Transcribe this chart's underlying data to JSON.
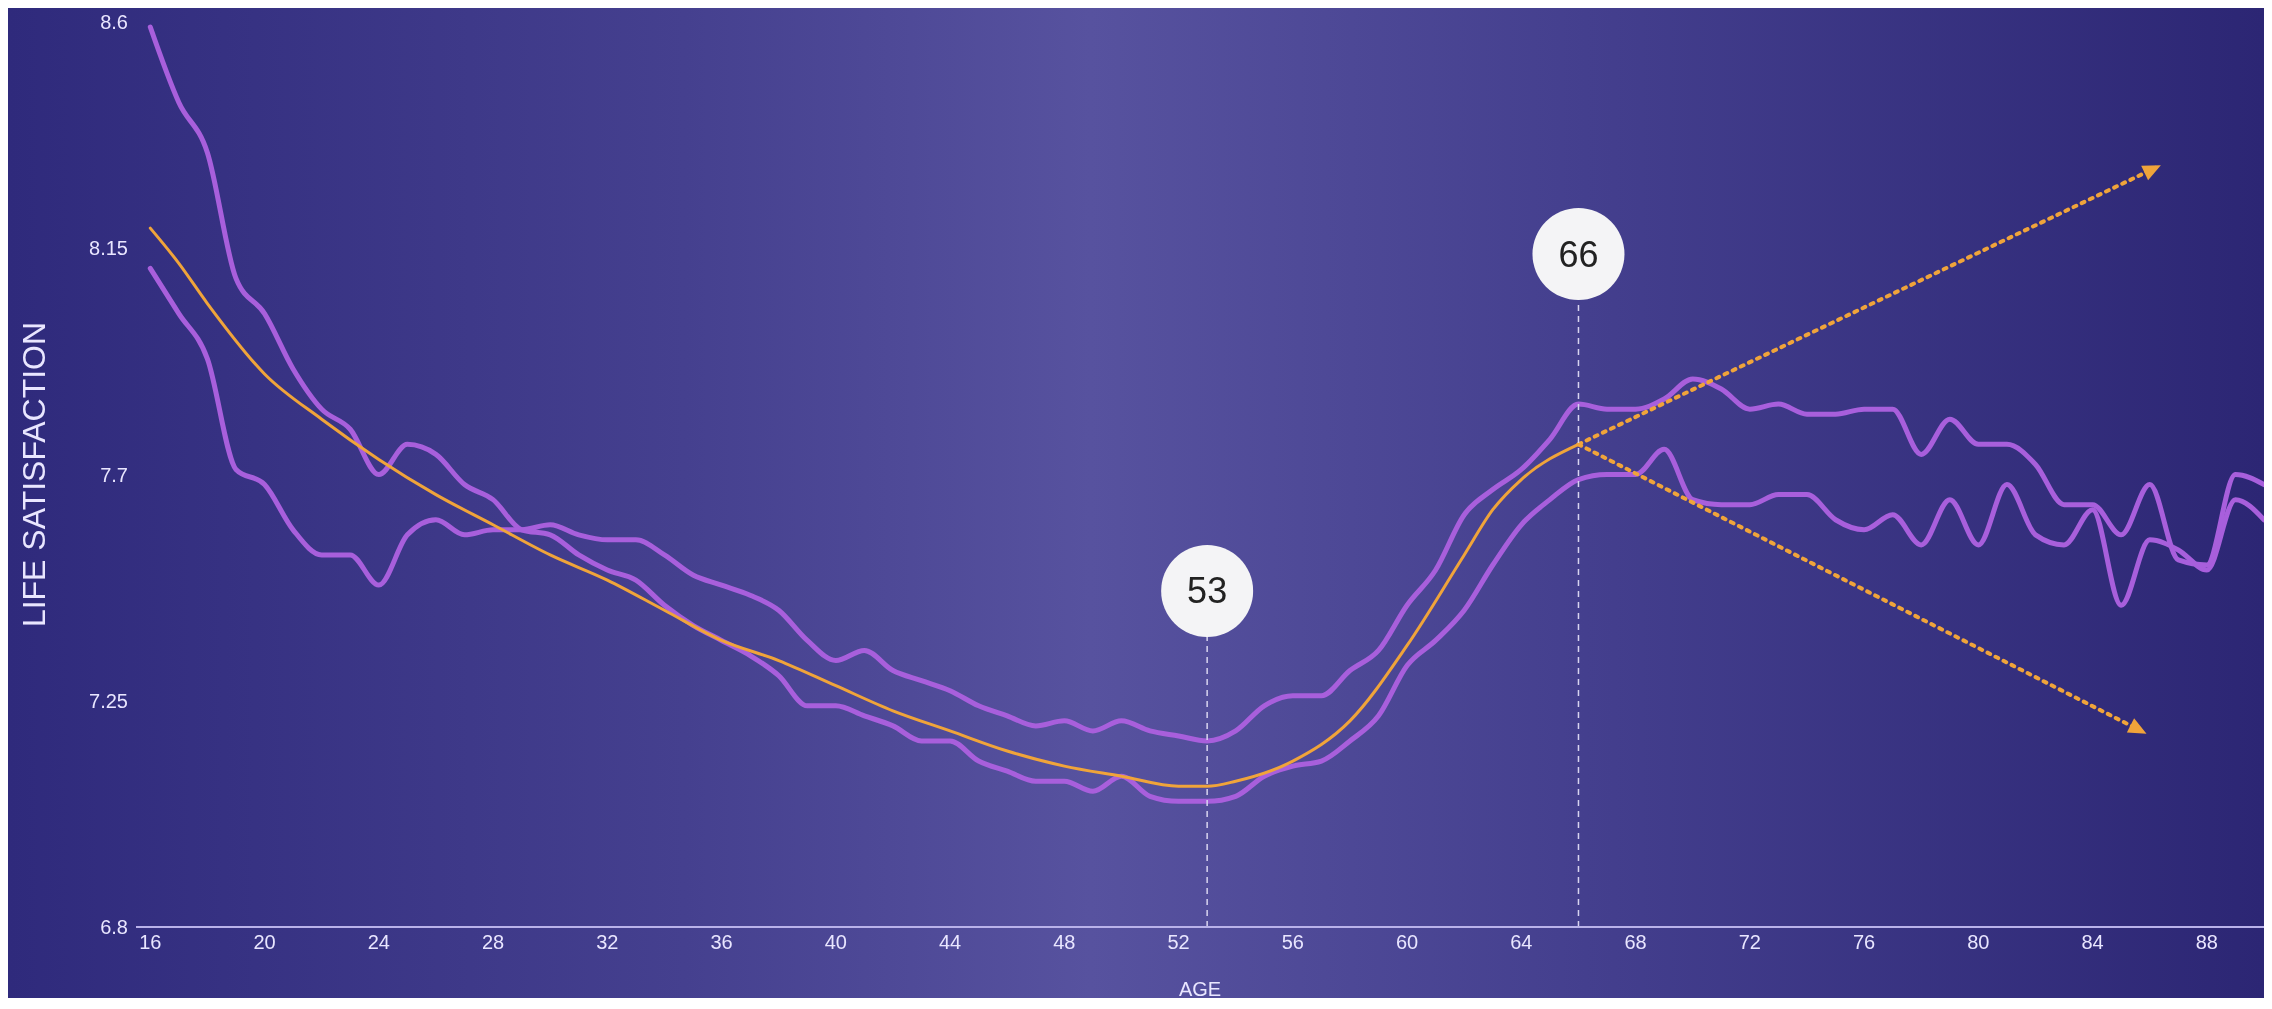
{
  "chart_data": {
    "type": "line",
    "xlabel": "AGE",
    "ylabel": "LIFE SATISFACTION",
    "x": [
      16,
      17,
      18,
      19,
      20,
      21,
      22,
      23,
      24,
      25,
      26,
      27,
      28,
      29,
      30,
      31,
      32,
      33,
      34,
      35,
      36,
      37,
      38,
      39,
      40,
      41,
      42,
      43,
      44,
      45,
      46,
      47,
      48,
      49,
      50,
      51,
      52,
      53,
      54,
      55,
      56,
      57,
      58,
      59,
      60,
      61,
      62,
      63,
      64,
      65,
      66,
      67,
      68,
      69,
      70,
      71,
      72,
      73,
      74,
      75,
      76,
      77,
      78,
      79,
      80,
      81,
      82,
      83,
      84,
      85,
      86,
      87,
      88,
      89,
      90
    ],
    "series": [
      {
        "color": "#a85fdc",
        "values": [
          8.59,
          8.44,
          8.34,
          8.09,
          8.02,
          7.91,
          7.83,
          7.79,
          7.7,
          7.76,
          7.74,
          7.68,
          7.65,
          7.59,
          7.58,
          7.54,
          7.51,
          7.49,
          7.44,
          7.4,
          7.37,
          7.34,
          7.3,
          7.24,
          7.24,
          7.22,
          7.2,
          7.17,
          7.17,
          7.13,
          7.11,
          7.09,
          7.09,
          7.07,
          7.1,
          7.06,
          7.05,
          7.05,
          7.06,
          7.1,
          7.12,
          7.13,
          7.17,
          7.22,
          7.32,
          7.37,
          7.43,
          7.52,
          7.6,
          7.65,
          7.69,
          7.7,
          7.7,
          7.75,
          7.65,
          7.64,
          7.64,
          7.66,
          7.66,
          7.61,
          7.59,
          7.62,
          7.56,
          7.65,
          7.56,
          7.68,
          7.58,
          7.56,
          7.63,
          7.44,
          7.57,
          7.55,
          7.51,
          7.65,
          7.61
        ]
      },
      {
        "color": "#a85fdc",
        "values": [
          8.11,
          8.02,
          7.93,
          7.71,
          7.68,
          7.59,
          7.54,
          7.54,
          7.48,
          7.58,
          7.61,
          7.58,
          7.59,
          7.59,
          7.6,
          7.58,
          7.57,
          7.57,
          7.54,
          7.5,
          7.48,
          7.46,
          7.43,
          7.37,
          7.33,
          7.35,
          7.31,
          7.29,
          7.27,
          7.24,
          7.22,
          7.2,
          7.21,
          7.19,
          7.21,
          7.19,
          7.18,
          7.17,
          7.19,
          7.24,
          7.26,
          7.26,
          7.31,
          7.35,
          7.44,
          7.51,
          7.62,
          7.67,
          7.71,
          7.77,
          7.84,
          7.83,
          7.83,
          7.85,
          7.89,
          7.87,
          7.83,
          7.84,
          7.82,
          7.82,
          7.83,
          7.83,
          7.74,
          7.81,
          7.76,
          7.76,
          7.72,
          7.64,
          7.64,
          7.58,
          7.68,
          7.53,
          7.52,
          7.7,
          7.68
        ]
      },
      {
        "color": "#f0a43a",
        "x": [
          16,
          17,
          18,
          20,
          22,
          24,
          26,
          28,
          30,
          32,
          34,
          36,
          38,
          40,
          42,
          44,
          46,
          48,
          50,
          52,
          53,
          54,
          56,
          58,
          60,
          62,
          63,
          64,
          66
        ],
        "values": [
          8.19,
          8.12,
          8.04,
          7.9,
          7.81,
          7.73,
          7.66,
          7.6,
          7.54,
          7.49,
          7.43,
          7.37,
          7.33,
          7.28,
          7.23,
          7.19,
          7.15,
          7.12,
          7.1,
          7.08,
          7.08,
          7.09,
          7.13,
          7.21,
          7.36,
          7.54,
          7.63,
          7.69,
          7.76
        ]
      },
      {
        "color": "#f0a43a",
        "line_style": "dotted",
        "x": [
          66,
          86.2
        ],
        "values": [
          7.76,
          8.31
        ]
      },
      {
        "color": "#f0a43a",
        "line_style": "dotted",
        "x": [
          66,
          85.7
        ],
        "values": [
          7.76,
          7.19
        ]
      }
    ],
    "xlim": [
      15.5,
      90
    ],
    "xticks": [
      16,
      20,
      24,
      28,
      32,
      36,
      40,
      44,
      48,
      52,
      56,
      60,
      64,
      68,
      72,
      76,
      80,
      84,
      88
    ],
    "ylim": [
      6.8,
      8.6
    ],
    "yticks": [
      6.8,
      7.25,
      7.7,
      8.15,
      8.6
    ],
    "ref_lines": [
      {
        "axis": "x",
        "value": 53,
        "label": "53"
      },
      {
        "axis": "x",
        "value": 66,
        "label": "66"
      }
    ]
  }
}
